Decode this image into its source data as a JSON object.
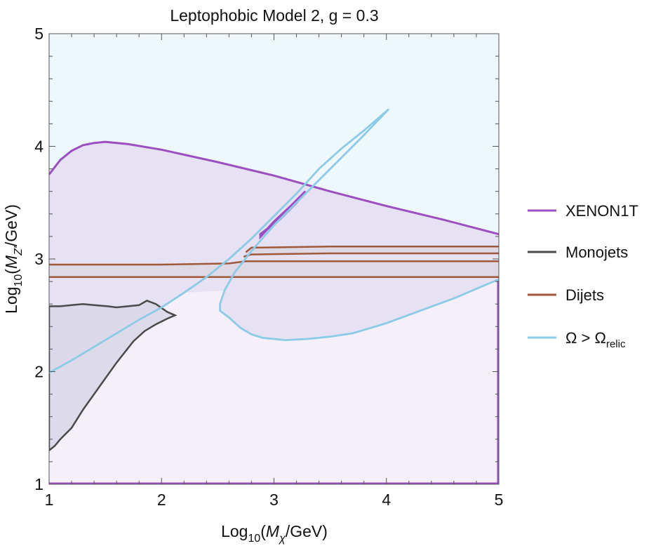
{
  "chart_data": {
    "type": "region-contour",
    "title": "Leptophobic Model 2, g = 0.3",
    "xlabel": {
      "prefix": "Log",
      "sub": "10",
      "open": "(",
      "var": "M",
      "var_sub": "χ",
      "unit": "/GeV)"
    },
    "ylabel": {
      "prefix": "Log",
      "sub": "10",
      "open": "(",
      "var": "M",
      "var_sub": "Z′",
      "unit": "/GeV)"
    },
    "xlim": [
      1,
      5
    ],
    "ylim": [
      1,
      5
    ],
    "xticks": [
      "1",
      "2",
      "3",
      "4",
      "5"
    ],
    "yticks": [
      "1",
      "2",
      "3",
      "4",
      "5"
    ],
    "colors": {
      "xenon": "#9b4fc0",
      "monojets": "#4a4a4a",
      "dijets": "#a0583a",
      "relic": "#8ccbe6",
      "relic_fill": "#eef8fc",
      "xenon_fill": "#e6e1f3",
      "bottom_fill": "#f4eff8",
      "mono_fill": "#d8d6e6",
      "dijet_fill": "#dcd4de"
    },
    "legend_position": "right",
    "legend": [
      {
        "key": "xenon",
        "label": "XENON1T"
      },
      {
        "key": "monojets",
        "label": "Monojets"
      },
      {
        "key": "dijets",
        "label": "Dijets"
      },
      {
        "key": "relic",
        "label_main": "Ω > Ω",
        "label_sub": "relic"
      }
    ],
    "series": {
      "xenon": [
        [
          1.0,
          3.75
        ],
        [
          1.1,
          3.88
        ],
        [
          1.2,
          3.96
        ],
        [
          1.3,
          4.01
        ],
        [
          1.4,
          4.03
        ],
        [
          1.5,
          4.04
        ],
        [
          1.7,
          4.02
        ],
        [
          2.0,
          3.97
        ],
        [
          2.5,
          3.86
        ],
        [
          3.0,
          3.74
        ],
        [
          3.5,
          3.6
        ],
        [
          4.0,
          3.47
        ],
        [
          4.5,
          3.35
        ],
        [
          5.0,
          3.22
        ]
      ],
      "xenon_fragment": [
        [
          2.88,
          3.2
        ],
        [
          3.0,
          3.33
        ],
        [
          3.15,
          3.47
        ],
        [
          3.28,
          3.6
        ],
        [
          3.2,
          3.5
        ],
        [
          3.05,
          3.35
        ],
        [
          2.88,
          3.22
        ]
      ],
      "monojets": [
        [
          1.0,
          1.3
        ],
        [
          1.05,
          1.34
        ],
        [
          1.1,
          1.4
        ],
        [
          1.2,
          1.5
        ],
        [
          1.3,
          1.66
        ],
        [
          1.45,
          1.87
        ],
        [
          1.6,
          2.08
        ],
        [
          1.75,
          2.27
        ],
        [
          1.85,
          2.36
        ],
        [
          1.95,
          2.42
        ],
        [
          2.05,
          2.47
        ],
        [
          2.12,
          2.5
        ],
        [
          2.05,
          2.53
        ],
        [
          1.95,
          2.6
        ],
        [
          1.87,
          2.63
        ],
        [
          1.8,
          2.59
        ],
        [
          1.7,
          2.58
        ],
        [
          1.6,
          2.57
        ],
        [
          1.52,
          2.58
        ],
        [
          1.4,
          2.59
        ],
        [
          1.3,
          2.6
        ],
        [
          1.2,
          2.59
        ],
        [
          1.1,
          2.58
        ],
        [
          1.0,
          2.58
        ]
      ],
      "dijets_band1_upper": [
        [
          1.0,
          2.95
        ],
        [
          2.0,
          2.95
        ],
        [
          2.6,
          2.96
        ],
        [
          2.75,
          2.98
        ],
        [
          3.5,
          2.98
        ],
        [
          5.0,
          2.98
        ]
      ],
      "dijets_band1_lower": [
        [
          1.0,
          2.84
        ],
        [
          5.0,
          2.84
        ]
      ],
      "dijets_band2_upper": [
        [
          2.75,
          3.06
        ],
        [
          2.8,
          3.1
        ],
        [
          3.5,
          3.11
        ],
        [
          5.0,
          3.11
        ]
      ],
      "dijets_band2_lower": [
        [
          2.73,
          3.02
        ],
        [
          2.8,
          3.04
        ],
        [
          3.5,
          3.05
        ],
        [
          5.0,
          3.05
        ]
      ],
      "relic_left": [
        [
          1.0,
          1.99
        ],
        [
          1.2,
          2.1
        ],
        [
          1.4,
          2.22
        ],
        [
          1.6,
          2.34
        ],
        [
          1.8,
          2.46
        ],
        [
          2.0,
          2.57
        ],
        [
          2.2,
          2.7
        ],
        [
          2.4,
          2.84
        ],
        [
          2.6,
          3.0
        ],
        [
          2.8,
          3.18
        ],
        [
          3.0,
          3.38
        ],
        [
          3.2,
          3.58
        ],
        [
          3.4,
          3.8
        ],
        [
          3.6,
          3.98
        ],
        [
          3.8,
          4.14
        ],
        [
          4.02,
          4.33
        ]
      ],
      "relic_right": [
        [
          4.02,
          4.33
        ],
        [
          3.8,
          4.1
        ],
        [
          3.6,
          3.9
        ],
        [
          3.4,
          3.7
        ],
        [
          3.2,
          3.5
        ],
        [
          3.0,
          3.3
        ],
        [
          2.8,
          3.07
        ],
        [
          2.65,
          2.88
        ],
        [
          2.56,
          2.72
        ],
        [
          2.52,
          2.6
        ],
        [
          2.52,
          2.54
        ],
        [
          2.6,
          2.48
        ],
        [
          2.7,
          2.39
        ],
        [
          2.8,
          2.33
        ],
        [
          2.9,
          2.3
        ],
        [
          3.1,
          2.28
        ],
        [
          3.3,
          2.29
        ],
        [
          3.5,
          2.31
        ],
        [
          3.7,
          2.34
        ],
        [
          4.0,
          2.43
        ],
        [
          4.3,
          2.54
        ],
        [
          4.6,
          2.65
        ],
        [
          5.0,
          2.82
        ]
      ]
    }
  }
}
